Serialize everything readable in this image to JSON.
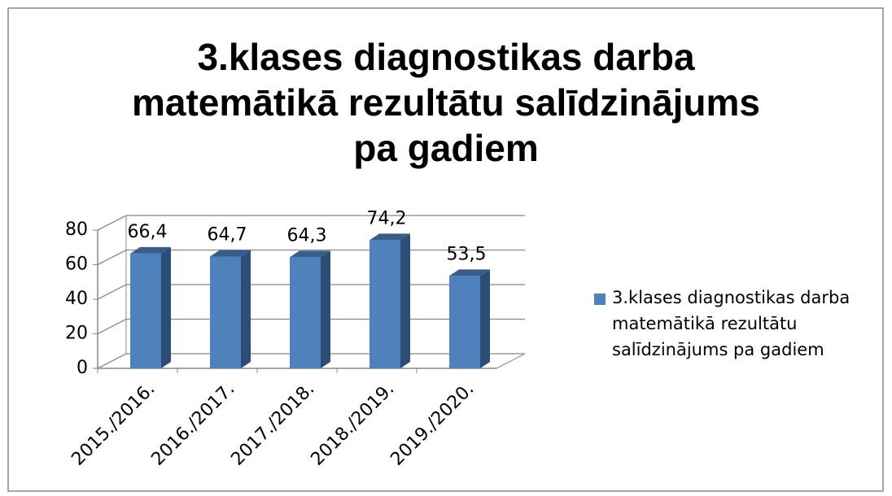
{
  "chart_data": {
    "type": "bar",
    "title": "3.klases diagnostikas darba matemātikā rezultātu salīdzinājums pa gadiem",
    "categories": [
      "2015./2016.",
      "2016./2017.",
      "2017./2018.",
      "2018./2019.",
      "2019./2020."
    ],
    "series": [
      {
        "name": "3.klases diagnostikas darba matemātikā rezultātu salīdzinājums pa gadiem",
        "color": "#4f81bd",
        "values": [
          66.4,
          64.7,
          64.3,
          74.2,
          53.5
        ],
        "value_labels": [
          "66,4",
          "64,7",
          "64,3",
          "74,2",
          "53,5"
        ]
      }
    ],
    "ylim": [
      0,
      80
    ],
    "yticks": [
      0,
      20,
      40,
      60,
      80
    ],
    "grid": true,
    "legend": "right"
  }
}
